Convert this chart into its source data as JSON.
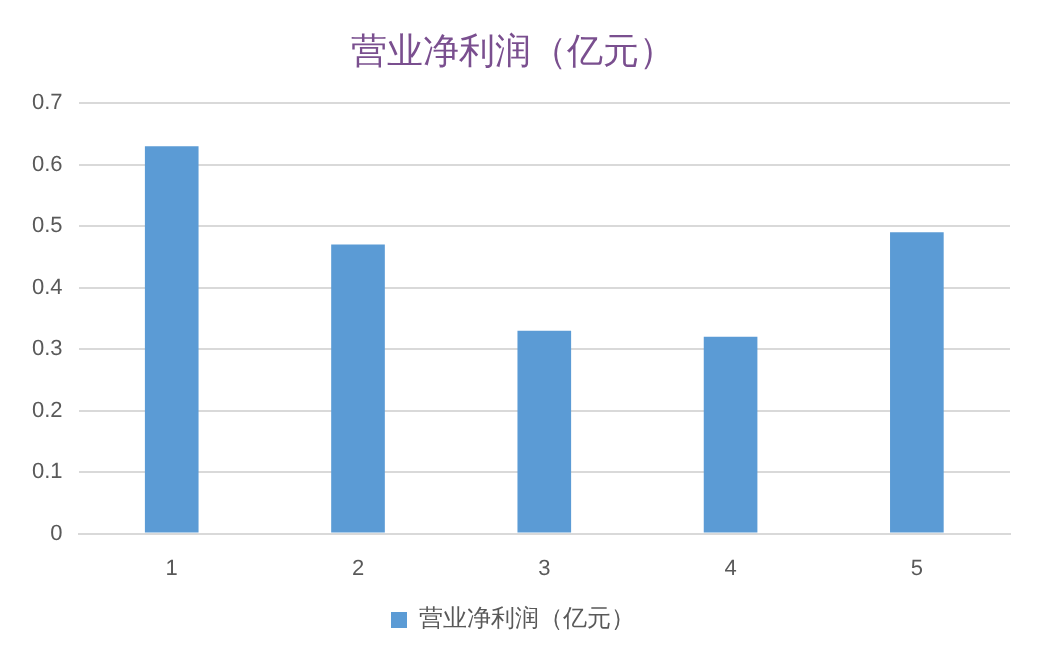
{
  "chart_data": {
    "type": "bar",
    "title": "营业净利润（亿元）",
    "categories": [
      "1",
      "2",
      "3",
      "4",
      "5"
    ],
    "series": [
      {
        "name": "营业净利润（亿元）",
        "color": "#5b9bd5",
        "values": [
          0.63,
          0.47,
          0.33,
          0.32,
          0.49
        ]
      }
    ],
    "ylim": [
      0,
      0.7
    ],
    "yticks": [
      0,
      0.1,
      0.2,
      0.3,
      0.4,
      0.5,
      0.6,
      0.7
    ],
    "grid": "y",
    "legend": "bottom"
  }
}
